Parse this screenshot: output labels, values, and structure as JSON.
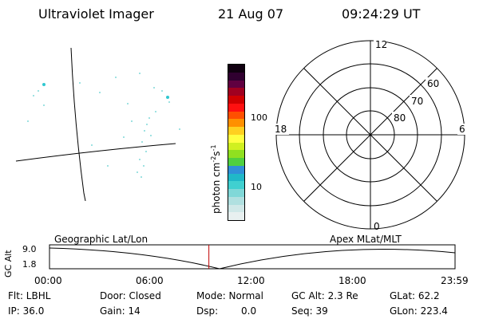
{
  "header": {
    "instrument": "Ultraviolet Imager",
    "date": "21 Aug 07",
    "time": "09:24:29 UT"
  },
  "colorbar": {
    "unit_label": "photon cm",
    "unit_exp1": "-2",
    "unit_s": "s",
    "unit_exp2": "-1",
    "ticks": [
      "100",
      "10"
    ],
    "colors": [
      "#e8f0f0",
      "#d0e8e8",
      "#b0e0e0",
      "#80d8d8",
      "#40d0d0",
      "#20b8c8",
      "#3090d8",
      "#50d040",
      "#90e020",
      "#d0f020",
      "#ffff40",
      "#ffd020",
      "#ff9000",
      "#ff5000",
      "#ff1010",
      "#d00000",
      "#a00020",
      "#600040",
      "#300030",
      "#100010"
    ]
  },
  "polar": {
    "mlt_labels": {
      "top": "12",
      "left": "18",
      "right": "6",
      "bottom": "0"
    },
    "lat_labels": [
      "60",
      "70",
      "80"
    ]
  },
  "timeline": {
    "ylabel": "GC Alt",
    "left_label": "Geographic Lat/Lon",
    "right_label": "Apex MLat/MLT",
    "ymax": "9.0",
    "ymin": "1.8",
    "xticks": [
      "00:00",
      "06:00",
      "12:00",
      "18:00",
      "23:59"
    ],
    "current_time_fraction": 0.393
  },
  "info": {
    "filter": "Flt: LBHL",
    "ip": "IP: 36.0",
    "door": "Door: Closed",
    "gain": "Gain: 14",
    "mode": "Mode: Normal",
    "dsp_label": "Dsp:",
    "dsp_value": "0.0",
    "gc_alt": "GC Alt: 2.3 Re",
    "seq": "Seq: 39",
    "glat": "GLat:  62.2",
    "glon": "GLon: 223.4"
  }
}
